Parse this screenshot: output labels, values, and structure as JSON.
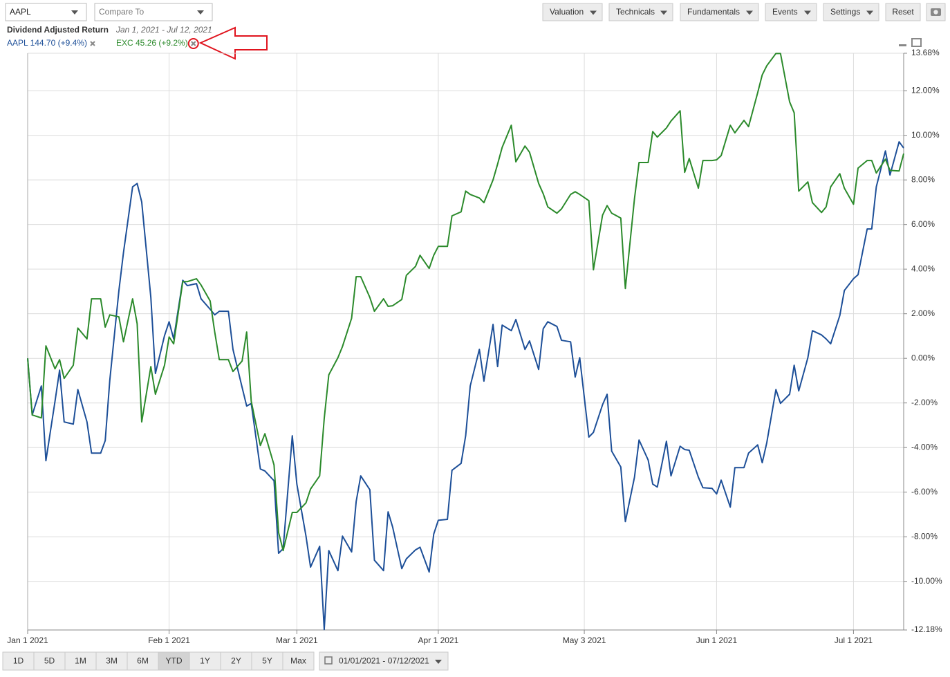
{
  "toolbar": {
    "symbol": "AAPL",
    "compare_placeholder": "Compare To",
    "menus": [
      "Valuation",
      "Technicals",
      "Fundamentals",
      "Events",
      "Settings"
    ],
    "reset": "Reset"
  },
  "chart_data": {
    "type": "line",
    "title": "Dividend Adjusted Return",
    "subtitle": "Jan 1, 2021 - Jul 12, 2021",
    "x": [
      "2021-01-01",
      "2021-01-02",
      "2021-01-04",
      "2021-01-05",
      "2021-01-07",
      "2021-01-08",
      "2021-01-09",
      "2021-01-11",
      "2021-01-12",
      "2021-01-14",
      "2021-01-15",
      "2021-01-17",
      "2021-01-18",
      "2021-01-19",
      "2021-01-21",
      "2021-01-22",
      "2021-01-24",
      "2021-01-25",
      "2021-01-26",
      "2021-01-28",
      "2021-01-29",
      "2021-01-31",
      "2021-02-01",
      "2021-02-02",
      "2021-02-04",
      "2021-02-05",
      "2021-02-07",
      "2021-02-08",
      "2021-02-10",
      "2021-02-11",
      "2021-02-12",
      "2021-02-14",
      "2021-02-15",
      "2021-02-17",
      "2021-02-18",
      "2021-02-19",
      "2021-02-21",
      "2021-02-22",
      "2021-02-24",
      "2021-02-25",
      "2021-02-26",
      "2021-02-28",
      "2021-03-01",
      "2021-03-03",
      "2021-03-04",
      "2021-03-06",
      "2021-03-07",
      "2021-03-08",
      "2021-03-10",
      "2021-03-11",
      "2021-03-13",
      "2021-03-14",
      "2021-03-15",
      "2021-03-17",
      "2021-03-18",
      "2021-03-20",
      "2021-03-21",
      "2021-03-22",
      "2021-03-24",
      "2021-03-25",
      "2021-03-27",
      "2021-03-28",
      "2021-03-30",
      "2021-03-31",
      "2021-04-01",
      "2021-04-03",
      "2021-04-04",
      "2021-04-06",
      "2021-04-07",
      "2021-04-08",
      "2021-04-10",
      "2021-04-11",
      "2021-04-13",
      "2021-04-14",
      "2021-04-15",
      "2021-04-17",
      "2021-04-18",
      "2021-04-20",
      "2021-04-21",
      "2021-04-23",
      "2021-04-24",
      "2021-04-25",
      "2021-04-27",
      "2021-04-28",
      "2021-04-30",
      "2021-05-01",
      "2021-05-02",
      "2021-05-04",
      "2021-05-05",
      "2021-05-07",
      "2021-05-08",
      "2021-05-09",
      "2021-05-11",
      "2021-05-12",
      "2021-05-14",
      "2021-05-15",
      "2021-05-17",
      "2021-05-18",
      "2021-05-19",
      "2021-05-21",
      "2021-05-22",
      "2021-05-24",
      "2021-05-25",
      "2021-05-26",
      "2021-05-28",
      "2021-05-29",
      "2021-05-31",
      "2021-06-01",
      "2021-06-02",
      "2021-06-04",
      "2021-06-05",
      "2021-06-07",
      "2021-06-08",
      "2021-06-10",
      "2021-06-11",
      "2021-06-12",
      "2021-06-14",
      "2021-06-15",
      "2021-06-17",
      "2021-06-18",
      "2021-06-19",
      "2021-06-21",
      "2021-06-22",
      "2021-06-24",
      "2021-06-25",
      "2021-06-26",
      "2021-06-28",
      "2021-06-29",
      "2021-07-01",
      "2021-07-02",
      "2021-07-04",
      "2021-07-05",
      "2021-07-06",
      "2021-07-08",
      "2021-07-09",
      "2021-07-11",
      "2021-07-12"
    ],
    "series": [
      {
        "name": "AAPL 144.70 (+9.4%)",
        "color": "#1d4f98",
        "values": [
          0,
          -2.54,
          -1.24,
          -4.59,
          -1.92,
          -0.53,
          -2.85,
          -2.95,
          -1.4,
          -2.85,
          -4.25,
          -4.25,
          -3.69,
          -0.99,
          3.04,
          4.74,
          7.69,
          7.84,
          7.01,
          2.73,
          -0.68,
          1.02,
          1.64,
          0.87,
          3.5,
          3.26,
          3.35,
          2.67,
          2.2,
          1.95,
          2.11,
          2.11,
          0.4,
          -1.3,
          -2.14,
          -2.02,
          -4.96,
          -5.05,
          -5.49,
          -8.74,
          -8.53,
          -3.47,
          -5.64,
          -7.97,
          -9.36,
          -8.43,
          -12.16,
          -8.62,
          -9.52,
          -7.97,
          -8.68,
          -6.42,
          -5.27,
          -5.89,
          -9.05,
          -9.52,
          -6.88,
          -7.57,
          -9.43,
          -8.99,
          -8.59,
          -8.47,
          -9.58,
          -7.88,
          -7.26,
          -7.22,
          -5.02,
          -4.71,
          -3.47,
          -1.24,
          0.4,
          -1.02,
          1.52,
          -0.37,
          1.49,
          1.24,
          1.74,
          0.4,
          0.78,
          -0.5,
          1.33,
          1.64,
          1.43,
          0.81,
          0.74,
          -0.84,
          0.03,
          -3.53,
          -3.32,
          -2.08,
          -1.61,
          -4.16,
          -4.87,
          -7.32,
          -5.33,
          -3.66,
          -4.56,
          -5.64,
          -5.77,
          -3.72,
          -5.27,
          -3.94,
          -4.09,
          -4.12,
          -5.33,
          -5.8,
          -5.83,
          -6.08,
          -5.46,
          -6.67,
          -4.9,
          -4.9,
          -4.25,
          -3.88,
          -4.68,
          -3.78,
          -1.4,
          -2.02,
          -1.61,
          -0.31,
          -1.46,
          0.03,
          1.24,
          1.05,
          0.87,
          0.65,
          1.92,
          3.04,
          3.57,
          3.75,
          5.8,
          5.8,
          7.69,
          9.3,
          8.22,
          9.71,
          9.43
        ]
      },
      {
        "name": "EXC 45.26 (+9.2%)",
        "color": "#2b8a2b",
        "values": [
          0,
          -2.54,
          -2.67,
          0.56,
          -0.47,
          -0.06,
          -0.9,
          -0.31,
          1.36,
          0.87,
          2.67,
          2.67,
          1.4,
          1.95,
          1.86,
          0.74,
          2.67,
          1.55,
          -2.85,
          -0.37,
          -1.61,
          -0.31,
          0.96,
          0.65,
          3.44,
          3.44,
          3.57,
          3.29,
          2.57,
          1.18,
          -0.06,
          -0.06,
          -0.59,
          -0.12,
          1.18,
          -1.92,
          -3.91,
          -3.38,
          -4.78,
          -7.81,
          -8.62,
          -6.91,
          -6.91,
          -6.48,
          -5.86,
          -5.27,
          -2.7,
          -0.74,
          0.03,
          0.53,
          1.8,
          3.66,
          3.66,
          2.73,
          2.11,
          2.67,
          2.33,
          2.36,
          2.64,
          3.72,
          4.12,
          4.62,
          4.03,
          4.62,
          5.02,
          5.02,
          6.39,
          6.57,
          7.5,
          7.35,
          7.19,
          6.98,
          8.0,
          8.71,
          9.46,
          10.45,
          8.81,
          9.52,
          9.24,
          7.84,
          7.38,
          6.79,
          6.51,
          6.7,
          7.35,
          7.47,
          7.35,
          7.07,
          3.97,
          6.42,
          6.85,
          6.51,
          6.29,
          3.13,
          7.16,
          8.78,
          8.78,
          10.17,
          9.92,
          10.33,
          10.64,
          11.1,
          8.34,
          8.96,
          7.63,
          8.87,
          8.87,
          8.9,
          9.09,
          10.45,
          10.11,
          10.67,
          10.39,
          11.91,
          12.71,
          13.12,
          13.67,
          13.67,
          11.5,
          11.01,
          7.5,
          7.91,
          6.98,
          6.54,
          6.79,
          7.69,
          8.28,
          7.63,
          6.91,
          8.53,
          8.87,
          8.87,
          8.31,
          8.93,
          8.43,
          8.4,
          9.18
        ]
      }
    ],
    "xlim": [
      "2021-01-01",
      "2021-07-12"
    ],
    "xticks": [
      {
        "value": "2021-01-01",
        "label": "Jan 1 2021"
      },
      {
        "value": "2021-02-01",
        "label": "Feb 1 2021"
      },
      {
        "value": "2021-03-01",
        "label": "Mar 1 2021"
      },
      {
        "value": "2021-04-01",
        "label": "Apr 1 2021"
      },
      {
        "value": "2021-05-03",
        "label": "May 3 2021"
      },
      {
        "value": "2021-06-01",
        "label": "Jun 1 2021"
      },
      {
        "value": "2021-07-01",
        "label": "Jul 1 2021"
      }
    ],
    "ylim": [
      -12.18,
      13.68
    ],
    "yticks": [
      {
        "value": -12.18,
        "label": "-12.18%"
      },
      {
        "value": -10,
        "label": "-10.00%"
      },
      {
        "value": -8,
        "label": "-8.00%"
      },
      {
        "value": -6,
        "label": "-6.00%"
      },
      {
        "value": -4,
        "label": "-4.00%"
      },
      {
        "value": -2,
        "label": "-2.00%"
      },
      {
        "value": 0,
        "label": "0.00%"
      },
      {
        "value": 2,
        "label": "2.00%"
      },
      {
        "value": 4,
        "label": "4.00%"
      },
      {
        "value": 6,
        "label": "6.00%"
      },
      {
        "value": 8,
        "label": "8.00%"
      },
      {
        "value": 10,
        "label": "10.00%"
      },
      {
        "value": 12,
        "label": "12.00%"
      },
      {
        "value": 13.68,
        "label": "13.68%"
      }
    ],
    "grid": true
  },
  "range_bar": {
    "periods": [
      "1D",
      "5D",
      "1M",
      "3M",
      "6M",
      "YTD",
      "1Y",
      "2Y",
      "5Y",
      "Max"
    ],
    "active": "YTD",
    "date_range": "01/01/2021 - 07/12/2021"
  }
}
